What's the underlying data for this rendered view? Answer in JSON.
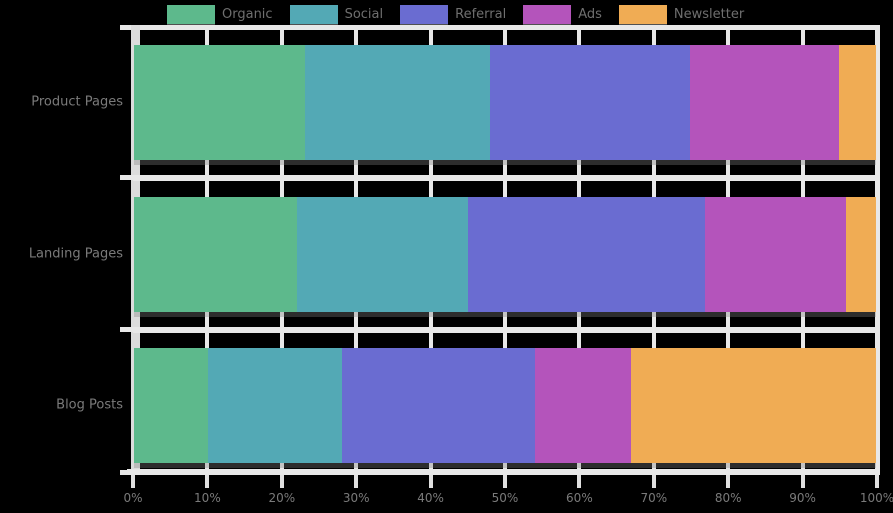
{
  "chart_data": {
    "type": "bar",
    "stacked": true,
    "orientation": "horizontal",
    "title": "",
    "xlabel": "",
    "ylabel": "",
    "xlim": [
      0,
      100
    ],
    "grid": true,
    "legend_position": "top",
    "categories": [
      "Product Pages",
      "Landing Pages",
      "Blog Posts"
    ],
    "series": [
      {
        "name": "Organic",
        "color": "#5db98c",
        "values": [
          23,
          22,
          10
        ]
      },
      {
        "name": "Social",
        "color": "#53a9b5",
        "values": [
          25,
          23,
          18
        ]
      },
      {
        "name": "Referral",
        "color": "#6a6cd1",
        "values": [
          27,
          32,
          26
        ]
      },
      {
        "name": "Ads",
        "color": "#b454bb",
        "values": [
          20,
          19,
          13
        ]
      },
      {
        "name": "Newsletter",
        "color": "#f0ac54",
        "values": [
          5,
          4,
          33
        ]
      }
    ],
    "x_ticks": [
      "0%",
      "10%",
      "20%",
      "30%",
      "40%",
      "50%",
      "60%",
      "70%",
      "80%",
      "90%",
      "100%"
    ]
  },
  "styles": {
    "background_color": "#000000",
    "grid_color": "#e8e8e8",
    "axis_text_color": "#7a7a7a",
    "legend_text_color": "#6f6f6f"
  }
}
